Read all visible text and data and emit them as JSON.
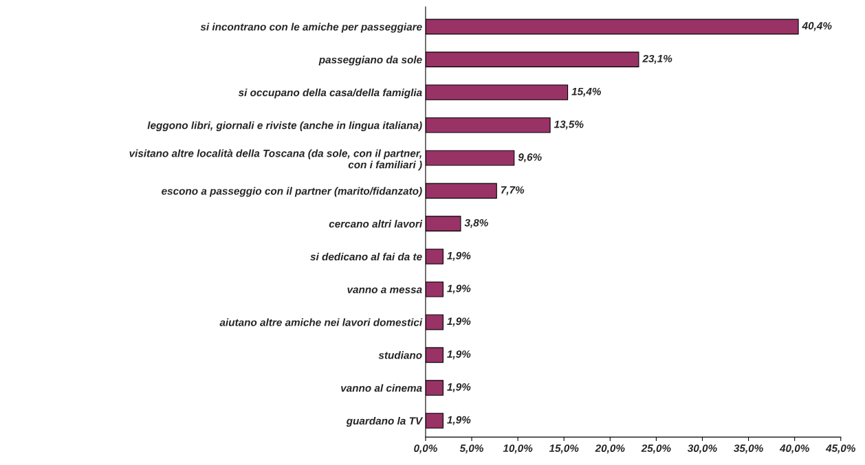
{
  "chart_data": {
    "type": "bar",
    "orientation": "horizontal",
    "categories": [
      "si incontrano con le amiche per passeggiare",
      "passeggiano da sole",
      "si occupano della casa/della famiglia",
      "leggono libri, giornali e riviste (anche in lingua italiana)",
      "visitano altre località della Toscana (da sole, con il partner,\ncon i familiari )",
      "escono a passeggio con il partner (marito/fidanzato)",
      "cercano altri lavori",
      "si dedicano al fai da te",
      "vanno a messa",
      "aiutano altre amiche nei lavori domestici",
      "studiano",
      "vanno al cinema",
      "guardano la TV"
    ],
    "values": [
      40.4,
      23.1,
      15.4,
      13.5,
      9.6,
      7.7,
      3.8,
      1.9,
      1.9,
      1.9,
      1.9,
      1.9,
      1.9
    ],
    "value_labels": [
      "40,4%",
      "23,1%",
      "15,4%",
      "13,5%",
      "9,6%",
      "7,7%",
      "3,8%",
      "1,9%",
      "1,9%",
      "1,9%",
      "1,9%",
      "1,9%",
      "1,9%"
    ],
    "color": "#993366",
    "xlim": [
      0,
      45
    ],
    "xticks": [
      {
        "value": 0,
        "label": "0,0%"
      },
      {
        "value": 5,
        "label": "5,0%"
      },
      {
        "value": 10,
        "label": "10,0%"
      },
      {
        "value": 15,
        "label": "15,0%"
      },
      {
        "value": 20,
        "label": "20,0%"
      },
      {
        "value": 25,
        "label": "25,0%"
      },
      {
        "value": 30,
        "label": "30,0%"
      },
      {
        "value": 35,
        "label": "35,0%"
      },
      {
        "value": 40,
        "label": "40,0%"
      },
      {
        "value": 45,
        "label": "45,0%"
      }
    ],
    "grid": false,
    "legend": false
  }
}
